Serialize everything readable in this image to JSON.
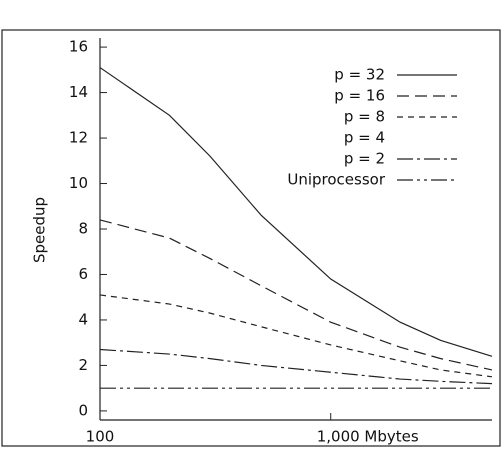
{
  "chart_data": {
    "type": "line",
    "y_label": "Speedup",
    "x_scale": "log",
    "x": [
      100,
      200,
      300,
      500,
      1000,
      2000,
      3000,
      5000
    ],
    "series": [
      {
        "name": "p = 32",
        "color": "#222",
        "dash": "none",
        "values": [
          15.1,
          13.0,
          11.2,
          8.6,
          5.8,
          3.9,
          3.1,
          2.4
        ]
      },
      {
        "name": "p = 16",
        "color": "#222",
        "dash": "12,6",
        "values": [
          8.4,
          7.6,
          6.7,
          5.5,
          3.9,
          2.8,
          2.3,
          1.8
        ]
      },
      {
        "name": "p = 8",
        "color": "#222",
        "dash": "6,5",
        "values": [
          5.1,
          4.7,
          4.3,
          3.7,
          2.9,
          2.2,
          1.8,
          1.5
        ]
      },
      {
        "name": "p = 4",
        "color": "#222",
        "dash": "none",
        "values": [
          null,
          null,
          null,
          null,
          null,
          null,
          null,
          null
        ]
      },
      {
        "name": "p = 2",
        "color": "#222",
        "dash": "16,4,3,4",
        "values": [
          2.7,
          2.5,
          2.3,
          2.0,
          1.7,
          1.4,
          1.3,
          1.2
        ]
      },
      {
        "name": "Uniprocessor",
        "color": "#222",
        "dash": "16,4,3,4,3,4",
        "values": [
          1,
          1,
          1,
          1,
          1,
          1,
          1,
          1
        ]
      }
    ],
    "xlim": [
      100,
      5000
    ],
    "xticks": [
      100,
      {
        "value": 1000,
        "label": "1,000 Mbytes"
      }
    ],
    "ylim": [
      -0.4,
      16.4
    ],
    "yticks": [
      0,
      2,
      4,
      6,
      8,
      10,
      12,
      14,
      16
    ],
    "legend": "top-right"
  }
}
